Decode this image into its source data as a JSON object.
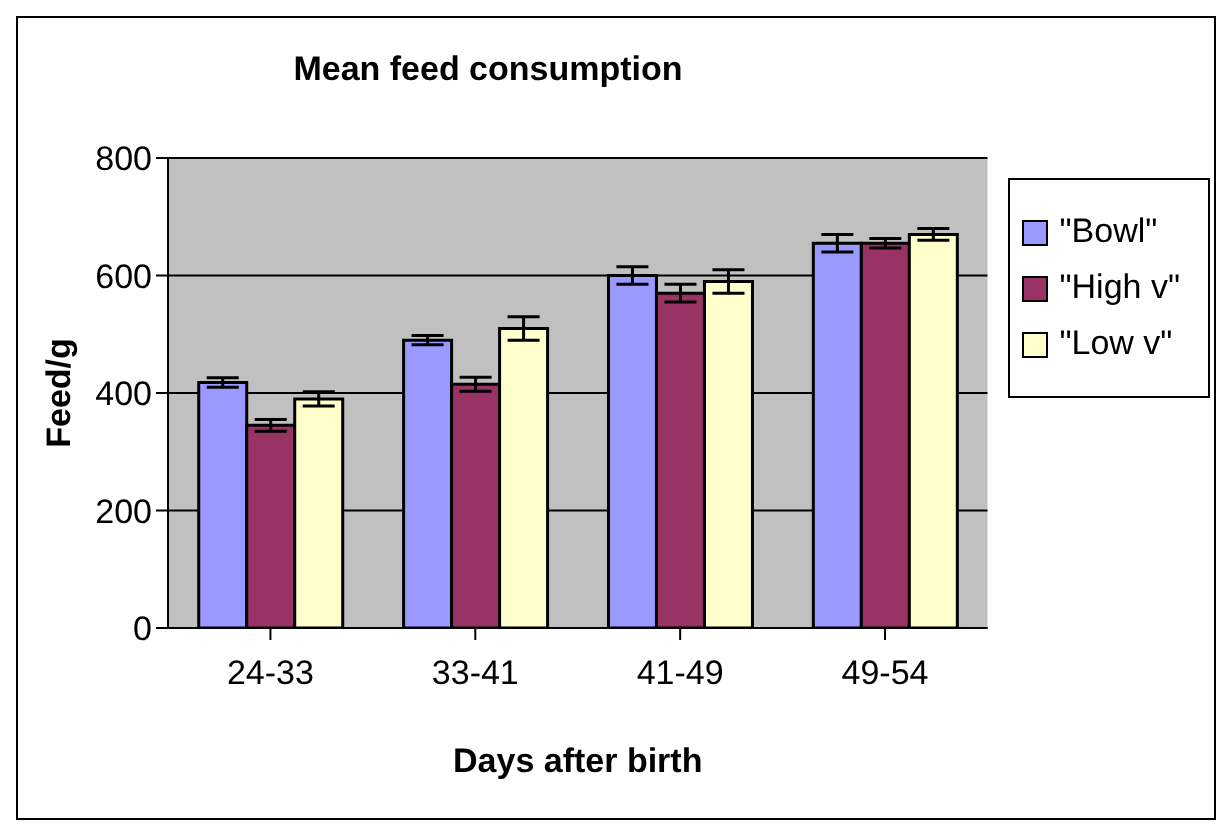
{
  "chart_data": {
    "type": "bar",
    "title": "Mean feed consumption",
    "xlabel": "Days after birth",
    "ylabel": "Feed/g",
    "categories": [
      "24-33",
      "33-41",
      "41-49",
      "49-54"
    ],
    "series": [
      {
        "name": "\"Bowl\"",
        "color": "#9999ff",
        "values": [
          418,
          490,
          600,
          655
        ],
        "errors": [
          8,
          8,
          15,
          15
        ]
      },
      {
        "name": "\"High v\"",
        "color": "#993366",
        "values": [
          345,
          415,
          570,
          655
        ],
        "errors": [
          10,
          12,
          15,
          8
        ]
      },
      {
        "name": "\"Low v\"",
        "color": "#ffffcc",
        "values": [
          390,
          510,
          590,
          670
        ],
        "errors": [
          12,
          20,
          20,
          10
        ]
      }
    ],
    "ylim": [
      0,
      800
    ],
    "yticks": [
      0,
      200,
      400,
      600,
      800
    ],
    "grid": "y",
    "legend": "right"
  }
}
